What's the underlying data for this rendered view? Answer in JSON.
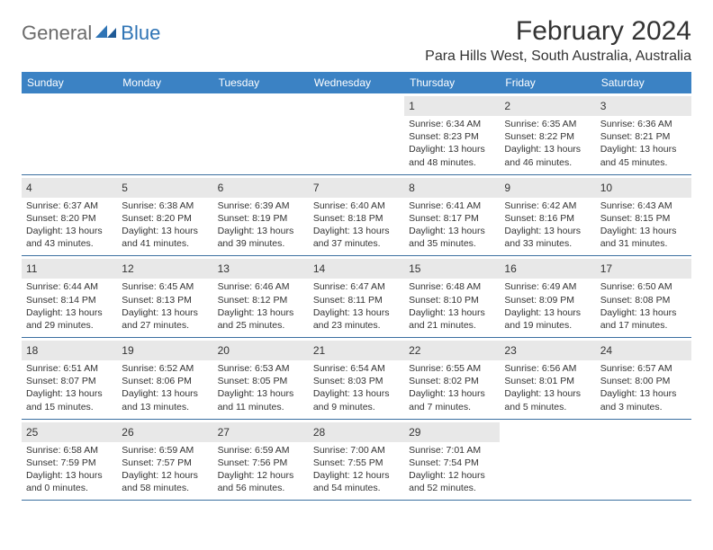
{
  "logo": {
    "general": "General",
    "blue": "Blue"
  },
  "title": "February 2024",
  "location": "Para Hills West, South Australia, Australia",
  "colors": {
    "header_bg": "#3b82c4",
    "header_fg": "#ffffff",
    "daynum_bg": "#e8e8e8",
    "week_border": "#3b6fa0",
    "text": "#333333",
    "logo_gray": "#6b6b6b",
    "logo_blue": "#2f74b5"
  },
  "day_headers": [
    "Sunday",
    "Monday",
    "Tuesday",
    "Wednesday",
    "Thursday",
    "Friday",
    "Saturday"
  ],
  "weeks": [
    [
      {
        "empty": true
      },
      {
        "empty": true
      },
      {
        "empty": true
      },
      {
        "empty": true
      },
      {
        "n": "1",
        "sr": "6:34 AM",
        "ss": "8:23 PM",
        "dl1": "Daylight: 13 hours",
        "dl2": "and 48 minutes."
      },
      {
        "n": "2",
        "sr": "6:35 AM",
        "ss": "8:22 PM",
        "dl1": "Daylight: 13 hours",
        "dl2": "and 46 minutes."
      },
      {
        "n": "3",
        "sr": "6:36 AM",
        "ss": "8:21 PM",
        "dl1": "Daylight: 13 hours",
        "dl2": "and 45 minutes."
      }
    ],
    [
      {
        "n": "4",
        "sr": "6:37 AM",
        "ss": "8:20 PM",
        "dl1": "Daylight: 13 hours",
        "dl2": "and 43 minutes."
      },
      {
        "n": "5",
        "sr": "6:38 AM",
        "ss": "8:20 PM",
        "dl1": "Daylight: 13 hours",
        "dl2": "and 41 minutes."
      },
      {
        "n": "6",
        "sr": "6:39 AM",
        "ss": "8:19 PM",
        "dl1": "Daylight: 13 hours",
        "dl2": "and 39 minutes."
      },
      {
        "n": "7",
        "sr": "6:40 AM",
        "ss": "8:18 PM",
        "dl1": "Daylight: 13 hours",
        "dl2": "and 37 minutes."
      },
      {
        "n": "8",
        "sr": "6:41 AM",
        "ss": "8:17 PM",
        "dl1": "Daylight: 13 hours",
        "dl2": "and 35 minutes."
      },
      {
        "n": "9",
        "sr": "6:42 AM",
        "ss": "8:16 PM",
        "dl1": "Daylight: 13 hours",
        "dl2": "and 33 minutes."
      },
      {
        "n": "10",
        "sr": "6:43 AM",
        "ss": "8:15 PM",
        "dl1": "Daylight: 13 hours",
        "dl2": "and 31 minutes."
      }
    ],
    [
      {
        "n": "11",
        "sr": "6:44 AM",
        "ss": "8:14 PM",
        "dl1": "Daylight: 13 hours",
        "dl2": "and 29 minutes."
      },
      {
        "n": "12",
        "sr": "6:45 AM",
        "ss": "8:13 PM",
        "dl1": "Daylight: 13 hours",
        "dl2": "and 27 minutes."
      },
      {
        "n": "13",
        "sr": "6:46 AM",
        "ss": "8:12 PM",
        "dl1": "Daylight: 13 hours",
        "dl2": "and 25 minutes."
      },
      {
        "n": "14",
        "sr": "6:47 AM",
        "ss": "8:11 PM",
        "dl1": "Daylight: 13 hours",
        "dl2": "and 23 minutes."
      },
      {
        "n": "15",
        "sr": "6:48 AM",
        "ss": "8:10 PM",
        "dl1": "Daylight: 13 hours",
        "dl2": "and 21 minutes."
      },
      {
        "n": "16",
        "sr": "6:49 AM",
        "ss": "8:09 PM",
        "dl1": "Daylight: 13 hours",
        "dl2": "and 19 minutes."
      },
      {
        "n": "17",
        "sr": "6:50 AM",
        "ss": "8:08 PM",
        "dl1": "Daylight: 13 hours",
        "dl2": "and 17 minutes."
      }
    ],
    [
      {
        "n": "18",
        "sr": "6:51 AM",
        "ss": "8:07 PM",
        "dl1": "Daylight: 13 hours",
        "dl2": "and 15 minutes."
      },
      {
        "n": "19",
        "sr": "6:52 AM",
        "ss": "8:06 PM",
        "dl1": "Daylight: 13 hours",
        "dl2": "and 13 minutes."
      },
      {
        "n": "20",
        "sr": "6:53 AM",
        "ss": "8:05 PM",
        "dl1": "Daylight: 13 hours",
        "dl2": "and 11 minutes."
      },
      {
        "n": "21",
        "sr": "6:54 AM",
        "ss": "8:03 PM",
        "dl1": "Daylight: 13 hours",
        "dl2": "and 9 minutes."
      },
      {
        "n": "22",
        "sr": "6:55 AM",
        "ss": "8:02 PM",
        "dl1": "Daylight: 13 hours",
        "dl2": "and 7 minutes."
      },
      {
        "n": "23",
        "sr": "6:56 AM",
        "ss": "8:01 PM",
        "dl1": "Daylight: 13 hours",
        "dl2": "and 5 minutes."
      },
      {
        "n": "24",
        "sr": "6:57 AM",
        "ss": "8:00 PM",
        "dl1": "Daylight: 13 hours",
        "dl2": "and 3 minutes."
      }
    ],
    [
      {
        "n": "25",
        "sr": "6:58 AM",
        "ss": "7:59 PM",
        "dl1": "Daylight: 13 hours",
        "dl2": "and 0 minutes."
      },
      {
        "n": "26",
        "sr": "6:59 AM",
        "ss": "7:57 PM",
        "dl1": "Daylight: 12 hours",
        "dl2": "and 58 minutes."
      },
      {
        "n": "27",
        "sr": "6:59 AM",
        "ss": "7:56 PM",
        "dl1": "Daylight: 12 hours",
        "dl2": "and 56 minutes."
      },
      {
        "n": "28",
        "sr": "7:00 AM",
        "ss": "7:55 PM",
        "dl1": "Daylight: 12 hours",
        "dl2": "and 54 minutes."
      },
      {
        "n": "29",
        "sr": "7:01 AM",
        "ss": "7:54 PM",
        "dl1": "Daylight: 12 hours",
        "dl2": "and 52 minutes."
      },
      {
        "empty": true
      },
      {
        "empty": true
      }
    ]
  ],
  "labels": {
    "sunrise_prefix": "Sunrise: ",
    "sunset_prefix": "Sunset: "
  }
}
